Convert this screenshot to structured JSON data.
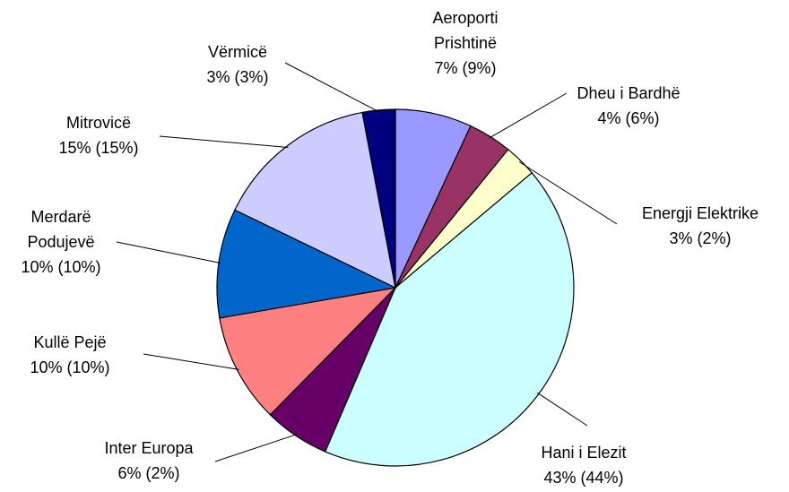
{
  "chart_data": {
    "type": "pie",
    "categories": [
      "Aeroporti\nPrishtinë",
      "Dheu i Bardhë",
      "Energji Elektrike",
      "Hani i Elezit",
      "Inter Europa",
      "Kullë Pejë",
      "Merdarë\nPodujevë",
      "Mitrovicë",
      "Vërmicë"
    ],
    "values": [
      7,
      4,
      3,
      43,
      6,
      10,
      10,
      15,
      3
    ],
    "value_labels": [
      "7% (9%)",
      "4% (6%)",
      "3% (2%)",
      "43% (44%)",
      "6% (2%)",
      "10% (10%)",
      "10% (10%)",
      "15% (15%)",
      "3% (3%)"
    ],
    "colors": [
      "#9999ff",
      "#993366",
      "#ffffcc",
      "#ccffff",
      "#660066",
      "#ff8080",
      "#0066cc",
      "#ccccff",
      "#000080"
    ]
  }
}
